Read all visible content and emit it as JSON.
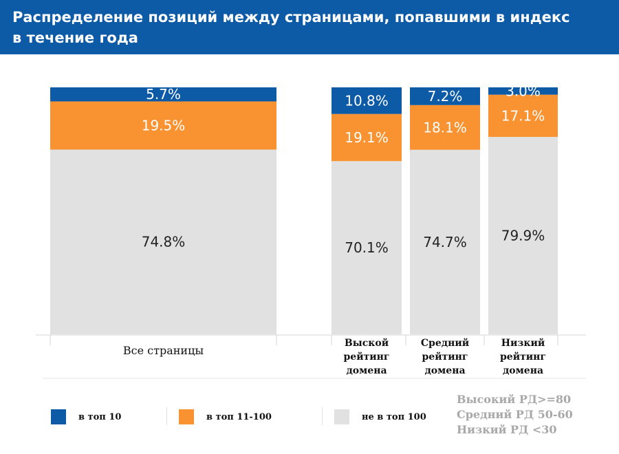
{
  "title_line1": "Распределение позиций между страницами, попавшими в индекс",
  "title_line2": "в течение года",
  "colors": {
    "top10": "#0d5aa7",
    "top11_100": "#f99231",
    "not_top100": "#e1e1e1",
    "header": "#0d5aa7"
  },
  "chart_data": {
    "type": "bar",
    "stacked": true,
    "normalized": true,
    "title": "Распределение позиций между страницами, попавшими в индекс в течение года",
    "categories": [
      [
        "Все страницы"
      ],
      [
        "Выской",
        "рейтинг",
        "домена"
      ],
      [
        "Средний",
        "рейтинг",
        "домена"
      ],
      [
        "Низкий",
        "рейтинг",
        "домена"
      ]
    ],
    "series": [
      {
        "name": "в топ 10",
        "values": [
          5.7,
          10.8,
          7.2,
          3.0
        ],
        "labels": [
          "5.7%",
          "10.8%",
          "7.2%",
          "3.0%"
        ]
      },
      {
        "name": "в топ 11-100",
        "values": [
          19.5,
          19.1,
          18.1,
          17.1
        ],
        "labels": [
          "19.5%",
          "19.1%",
          "18.1%",
          "17.1%"
        ]
      },
      {
        "name": "не в топ 100",
        "values": [
          74.8,
          70.1,
          74.7,
          79.9
        ],
        "labels": [
          "74.8%",
          "70.1%",
          "74.7%",
          "79.9%"
        ]
      }
    ],
    "ylim": [
      0,
      100
    ],
    "grid": false,
    "legend_position": "bottom"
  },
  "legend": [
    {
      "label": "в топ 10"
    },
    {
      "label": "в топ 11-100"
    },
    {
      "label": "не в топ 100"
    }
  ],
  "notes": [
    "Высокий РД>=80",
    "Средний РД 50-60",
    "Низкий РД <30"
  ]
}
